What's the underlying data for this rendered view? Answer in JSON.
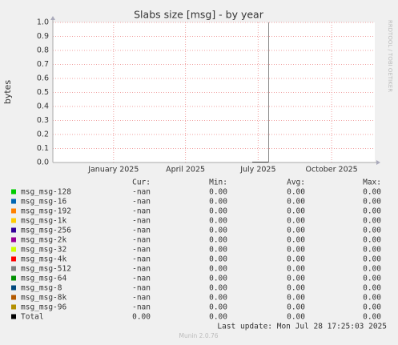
{
  "chart_data": {
    "type": "line",
    "title": "Slabs size [msg] - by year",
    "y_label": "bytes",
    "side_label": "RRDTOOL / TOBI OETIKER",
    "xlim": [
      "2024-10-17",
      "2025-11-24"
    ],
    "xticks": [
      {
        "value": "2025-01-01",
        "label": "January 2025"
      },
      {
        "value": "2025-04-01",
        "label": "April 2025"
      },
      {
        "value": "2025-07-01",
        "label": "July 2025"
      },
      {
        "value": "2025-10-01",
        "label": "October 2025"
      }
    ],
    "ylim": [
      0,
      1
    ],
    "yticks": [
      {
        "value": 0,
        "label": "0.0"
      },
      {
        "value": 0.1,
        "label": "0.1"
      },
      {
        "value": 0.2,
        "label": "0.2"
      },
      {
        "value": 0.3,
        "label": "0.3"
      },
      {
        "value": 0.4,
        "label": "0.4"
      },
      {
        "value": 0.5,
        "label": "0.5"
      },
      {
        "value": 0.6,
        "label": "0.6"
      },
      {
        "value": 0.7,
        "label": "0.7"
      },
      {
        "value": 0.8,
        "label": "0.8"
      },
      {
        "value": 0.9,
        "label": "0.9"
      },
      {
        "value": 1,
        "label": "1.0"
      }
    ],
    "grid": true
  },
  "legend": {
    "headers": [
      "Cur:",
      "Min:",
      "Avg:",
      "Max:"
    ],
    "rows": [
      {
        "name": "msg_msg-128",
        "color": "#00cc00",
        "cur": "-nan",
        "min": "0.00",
        "avg": "0.00",
        "max": "0.00"
      },
      {
        "name": "msg_msg-16",
        "color": "#0066b3",
        "cur": "-nan",
        "min": "0.00",
        "avg": "0.00",
        "max": "0.00"
      },
      {
        "name": "msg_msg-192",
        "color": "#ff8000",
        "cur": "-nan",
        "min": "0.00",
        "avg": "0.00",
        "max": "0.00"
      },
      {
        "name": "msg_msg-1k",
        "color": "#ffcc00",
        "cur": "-nan",
        "min": "0.00",
        "avg": "0.00",
        "max": "0.00"
      },
      {
        "name": "msg_msg-256",
        "color": "#330099",
        "cur": "-nan",
        "min": "0.00",
        "avg": "0.00",
        "max": "0.00"
      },
      {
        "name": "msg_msg-2k",
        "color": "#990099",
        "cur": "-nan",
        "min": "0.00",
        "avg": "0.00",
        "max": "0.00"
      },
      {
        "name": "msg_msg-32",
        "color": "#ccff00",
        "cur": "-nan",
        "min": "0.00",
        "avg": "0.00",
        "max": "0.00"
      },
      {
        "name": "msg_msg-4k",
        "color": "#ff0000",
        "cur": "-nan",
        "min": "0.00",
        "avg": "0.00",
        "max": "0.00"
      },
      {
        "name": "msg_msg-512",
        "color": "#808080",
        "cur": "-nan",
        "min": "0.00",
        "avg": "0.00",
        "max": "0.00"
      },
      {
        "name": "msg_msg-64",
        "color": "#008f00",
        "cur": "-nan",
        "min": "0.00",
        "avg": "0.00",
        "max": "0.00"
      },
      {
        "name": "msg_msg-8",
        "color": "#00487d",
        "cur": "-nan",
        "min": "0.00",
        "avg": "0.00",
        "max": "0.00"
      },
      {
        "name": "msg_msg-8k",
        "color": "#b35a00",
        "cur": "-nan",
        "min": "0.00",
        "avg": "0.00",
        "max": "0.00"
      },
      {
        "name": "msg_msg-96",
        "color": "#b38f00",
        "cur": "-nan",
        "min": "0.00",
        "avg": "0.00",
        "max": "0.00"
      },
      {
        "name": "Total",
        "color": "#000000",
        "cur": "0.00",
        "min": "0.00",
        "avg": "0.00",
        "max": "0.00"
      }
    ]
  },
  "last_update": "Last update: Mon Jul 28 17:25:03 2025",
  "footer": "Munin 2.0.76"
}
